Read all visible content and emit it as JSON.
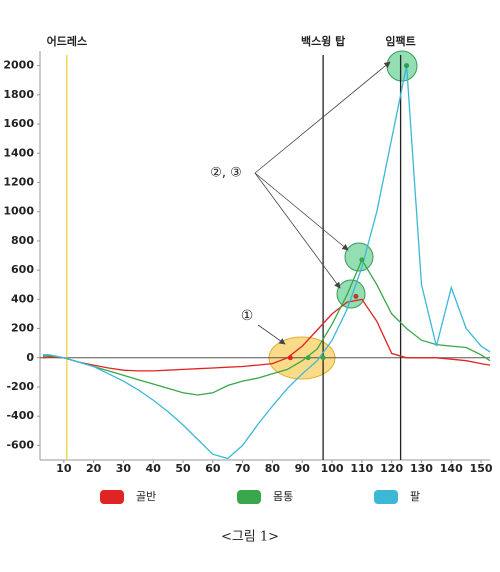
{
  "chart_data": {
    "type": "line",
    "x": [
      3,
      5,
      10,
      15,
      20,
      25,
      30,
      35,
      40,
      45,
      50,
      55,
      60,
      65,
      70,
      75,
      80,
      85,
      90,
      95,
      100,
      105,
      110,
      115,
      120,
      125,
      130,
      135,
      140,
      145,
      150,
      153
    ],
    "series": [
      {
        "name": "골반",
        "color": "#e02424",
        "values": [
          0,
          5,
          0,
          -30,
          -50,
          -70,
          -85,
          -90,
          -90,
          -85,
          -80,
          -75,
          -70,
          -65,
          -60,
          -50,
          -40,
          0,
          80,
          190,
          300,
          380,
          400,
          250,
          30,
          0,
          0,
          0,
          -10,
          -20,
          -40,
          -50
        ]
      },
      {
        "name": "몸통",
        "color": "#3aa64a",
        "values": [
          10,
          15,
          0,
          -30,
          -60,
          -90,
          -120,
          -150,
          -180,
          -210,
          -240,
          -255,
          -240,
          -190,
          -160,
          -140,
          -110,
          -80,
          -20,
          60,
          230,
          430,
          670,
          500,
          300,
          200,
          120,
          90,
          80,
          70,
          20,
          -20
        ]
      },
      {
        "name": "팔",
        "color": "#3bb8d8",
        "values": [
          20,
          20,
          0,
          -30,
          -60,
          -110,
          -160,
          -220,
          -290,
          -370,
          -460,
          -560,
          -660,
          -690,
          -600,
          -460,
          -330,
          -210,
          -110,
          -20,
          120,
          330,
          620,
          1000,
          1500,
          2000,
          500,
          80,
          480,
          200,
          80,
          40
        ]
      }
    ],
    "xlim": [
      2,
      153
    ],
    "ylim": [
      -700,
      2100
    ],
    "xticks": [
      10,
      20,
      30,
      40,
      50,
      60,
      70,
      80,
      90,
      100,
      110,
      120,
      130,
      140,
      150
    ],
    "yticks": [
      -600,
      -400,
      -200,
      0,
      200,
      400,
      600,
      800,
      1000,
      1200,
      1400,
      1600,
      1800,
      2000
    ],
    "events": [
      {
        "x": 11,
        "label": "어드레스",
        "color": "#f2d03c"
      },
      {
        "x": 97,
        "label": "백스윙 탑",
        "color": "#222222"
      },
      {
        "x": 123,
        "label": "임팩트",
        "color": "#222222"
      }
    ],
    "annotations": [
      "②, ③",
      "①"
    ],
    "caption": "<그림 1>"
  }
}
